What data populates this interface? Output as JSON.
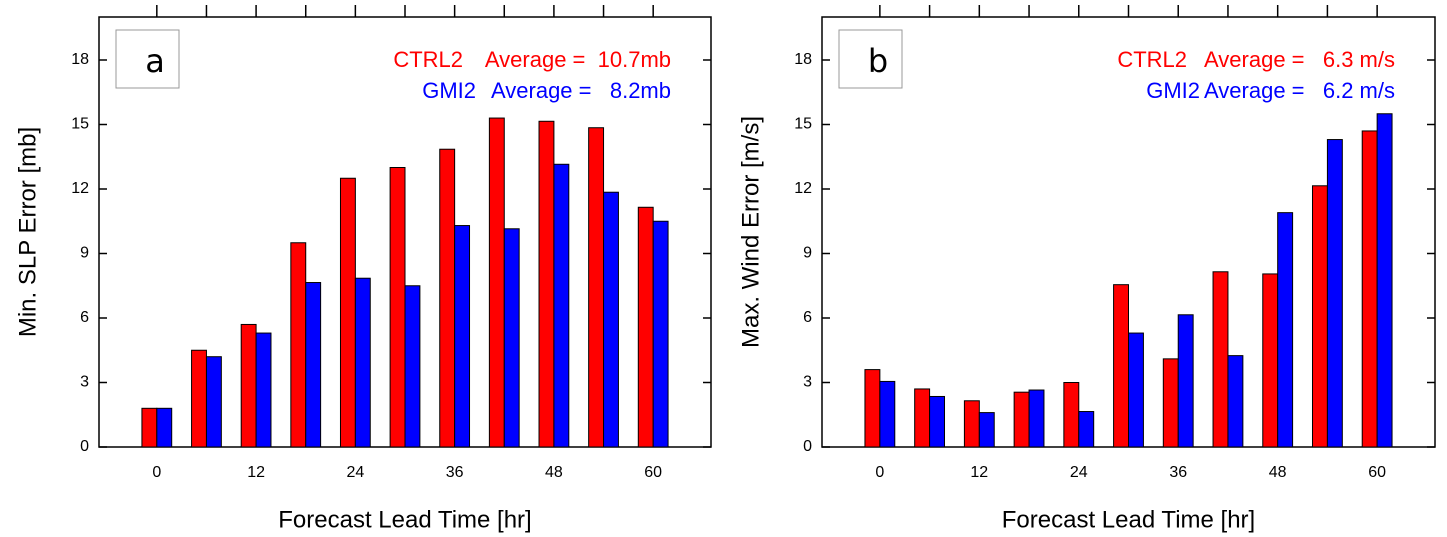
{
  "chart_data": [
    {
      "type": "bar",
      "panel": "a",
      "ylabel": "Min. SLP Error [mb]",
      "xlabel": "Forecast Lead Time [hr]",
      "categories": [
        "0",
        null,
        "12",
        null,
        "24",
        null,
        "36",
        null,
        "48",
        null,
        "60"
      ],
      "series": [
        {
          "name": "CTRL2",
          "annotation": "Average =  10.7mb",
          "color": "#ff0000",
          "values": [
            1.8,
            4.5,
            5.7,
            9.5,
            12.5,
            13.0,
            13.85,
            15.3,
            15.15,
            14.85,
            11.15
          ]
        },
        {
          "name": "GMI2",
          "annotation": "Average =   8.2mb",
          "color": "#0000ff",
          "values": [
            1.8,
            4.2,
            5.3,
            7.65,
            7.85,
            7.5,
            10.3,
            10.15,
            13.15,
            11.85,
            10.5
          ]
        }
      ],
      "ylim": [
        0,
        20
      ],
      "yticks": [
        0,
        3,
        6,
        9,
        12,
        15,
        18
      ]
    },
    {
      "type": "bar",
      "panel": "b",
      "ylabel": "Max. Wind Error [m/s]",
      "xlabel": "Forecast Lead Time [hr]",
      "categories": [
        "0",
        null,
        "12",
        null,
        "24",
        null,
        "36",
        null,
        "48",
        null,
        "60"
      ],
      "series": [
        {
          "name": "CTRL2",
          "annotation": "Average =   6.3 m/s",
          "color": "#ff0000",
          "values": [
            3.6,
            2.7,
            2.15,
            2.55,
            3.0,
            7.55,
            4.1,
            8.15,
            8.05,
            12.15,
            14.7
          ]
        },
        {
          "name": "GMI2",
          "annotation": "Average =   6.2 m/s",
          "color": "#0000ff",
          "values": [
            3.05,
            2.35,
            1.6,
            2.65,
            1.65,
            5.3,
            6.15,
            4.25,
            10.9,
            14.3,
            15.5
          ]
        }
      ],
      "ylim": [
        0,
        20
      ],
      "yticks": [
        0,
        3,
        6,
        9,
        12,
        15,
        18
      ]
    }
  ]
}
